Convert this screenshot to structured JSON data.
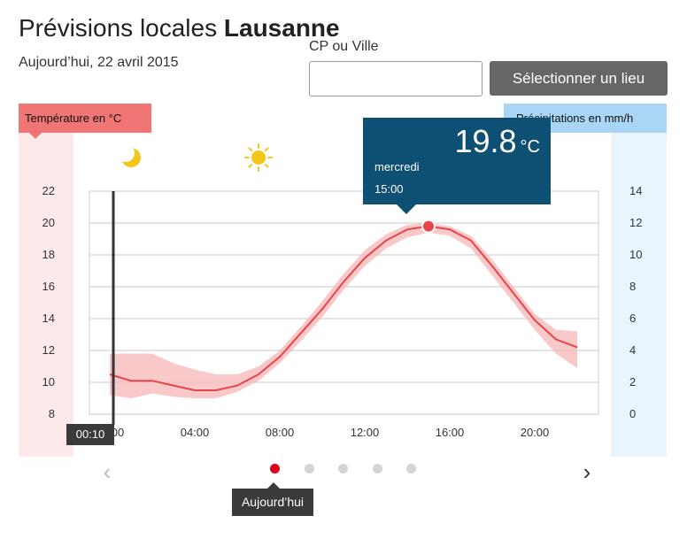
{
  "header": {
    "title_prefix": "Prévisions locales",
    "city": "Lausanne",
    "date": "Aujourd’hui, 22 avril 2015"
  },
  "location": {
    "label": "CP ou Ville",
    "input_value": "",
    "button_label": "Sélectionner un lieu"
  },
  "legend": {
    "temperature_label": "Température en °C",
    "precipitation_label": "Précipitations en mm/h"
  },
  "weather_icons": [
    {
      "icon": "moon-icon",
      "time": "00:00"
    },
    {
      "icon": "sun-icon",
      "time": "06:00"
    }
  ],
  "current_time_badge": "00:10",
  "tooltip": {
    "value": "19.8",
    "unit": "°C",
    "day": "mercredi",
    "time": "15:00"
  },
  "pager": {
    "prev_icon": "chevron-left-icon",
    "next_icon": "chevron-right-icon",
    "dot_count": 5,
    "active_index": 0,
    "active_label": "Aujourd’hui"
  },
  "colors": {
    "temperature": "#e8444a",
    "temperature_band": "#f7b5b7",
    "tooltip_bg": "#0e5073",
    "active_dot": "#e0001b"
  },
  "chart_data": {
    "type": "line",
    "x_unit": "hour",
    "x_tick_labels": [
      "00:00",
      "04:00",
      "08:00",
      "12:00",
      "16:00",
      "20:00"
    ],
    "x_ticks": [
      0,
      4,
      8,
      12,
      16,
      20
    ],
    "xlim": [
      0,
      24
    ],
    "y_left": {
      "label": "Température en °C",
      "ylim": [
        8,
        22
      ],
      "ticks": [
        8,
        10,
        12,
        14,
        16,
        18,
        20,
        22
      ]
    },
    "y_right": {
      "label": "Précipitations en mm/h",
      "ylim": [
        0,
        14
      ],
      "ticks": [
        0,
        2,
        4,
        6,
        8,
        10,
        12,
        14
      ]
    },
    "grid": true,
    "series": [
      {
        "name": "Température en °C",
        "x": [
          0,
          1,
          2,
          3,
          4,
          5,
          6,
          7,
          8,
          9,
          10,
          11,
          12,
          13,
          14,
          15,
          16,
          17,
          18,
          19,
          20,
          21,
          22
        ],
        "y": [
          10.5,
          10.1,
          10.1,
          9.8,
          9.5,
          9.5,
          9.8,
          10.5,
          11.6,
          13.1,
          14.6,
          16.3,
          17.8,
          18.9,
          19.6,
          19.8,
          19.6,
          18.9,
          17.3,
          15.6,
          13.9,
          12.7,
          12.2
        ],
        "range_low": [
          9.2,
          9.0,
          9.3,
          9.1,
          9.0,
          9.0,
          9.4,
          10.1,
          11.2,
          12.6,
          14.1,
          15.8,
          17.3,
          18.4,
          19.1,
          19.4,
          19.2,
          18.4,
          16.7,
          15.0,
          13.3,
          11.8,
          10.9
        ],
        "range_high": [
          11.8,
          11.8,
          11.8,
          11.2,
          10.8,
          10.5,
          10.5,
          11.0,
          12.0,
          13.5,
          15.1,
          16.8,
          18.3,
          19.3,
          19.9,
          20.0,
          19.8,
          19.2,
          17.7,
          16.0,
          14.3,
          13.3,
          13.2
        ]
      }
    ],
    "highlight": {
      "x": 15,
      "y": 19.8
    },
    "current_marker_x": 0.167
  }
}
